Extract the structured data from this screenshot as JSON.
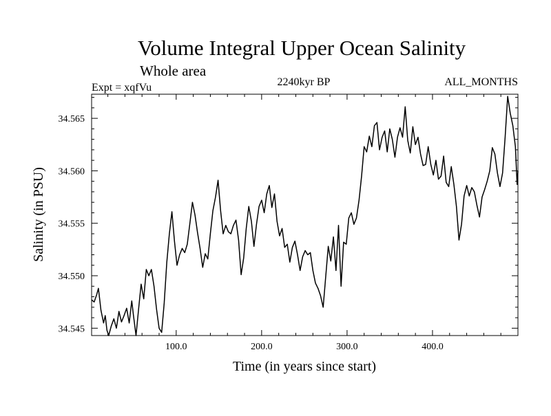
{
  "chart_data": {
    "type": "line",
    "title": "Volume Integral Upper Ocean Salinity",
    "subtitle": "Whole area",
    "experiment": "Expt = xqfVu",
    "period": "2240kyr BP",
    "months": "ALL_MONTHS",
    "xlabel": "Time (in years since start)",
    "ylabel": "Salinity (in PSU)",
    "xlim": [
      1,
      500
    ],
    "ylim": [
      34.5443,
      34.5673
    ],
    "x_ticks": [
      100,
      200,
      300,
      400
    ],
    "x_tick_labels": [
      "100.0",
      "200.0",
      "300.0",
      "400.0"
    ],
    "y_ticks": [
      34.545,
      34.55,
      34.555,
      34.56,
      34.565
    ],
    "y_tick_labels": [
      "34.545",
      "34.550",
      "34.555",
      "34.560",
      "34.565"
    ],
    "grid": false,
    "series": [
      {
        "name": "Salinity",
        "color": "#000000",
        "points": [
          [
            1,
            34.5477
          ],
          [
            4,
            34.5475
          ],
          [
            7,
            34.5482
          ],
          [
            9,
            34.5488
          ],
          [
            12,
            34.5467
          ],
          [
            15,
            34.5455
          ],
          [
            17,
            34.5462
          ],
          [
            19,
            34.5448
          ],
          [
            21,
            34.5443
          ],
          [
            24,
            34.5452
          ],
          [
            27,
            34.5459
          ],
          [
            30,
            34.545
          ],
          [
            33,
            34.5466
          ],
          [
            36,
            34.5456
          ],
          [
            39,
            34.5462
          ],
          [
            42,
            34.5469
          ],
          [
            45,
            34.5455
          ],
          [
            48,
            34.5476
          ],
          [
            50,
            34.5462
          ],
          [
            53,
            34.5443
          ],
          [
            56,
            34.5468
          ],
          [
            59,
            34.5492
          ],
          [
            62,
            34.5478
          ],
          [
            65,
            34.5506
          ],
          [
            68,
            34.55
          ],
          [
            71,
            34.5506
          ],
          [
            74,
            34.549
          ],
          [
            77,
            34.5468
          ],
          [
            80,
            34.545
          ],
          [
            83,
            34.5446
          ],
          [
            86,
            34.5474
          ],
          [
            89,
            34.5513
          ],
          [
            92,
            34.554
          ],
          [
            95,
            34.5561
          ],
          [
            98,
            34.5533
          ],
          [
            101,
            34.551
          ],
          [
            104,
            34.552
          ],
          [
            107,
            34.5526
          ],
          [
            110,
            34.5522
          ],
          [
            113,
            34.553
          ],
          [
            116,
            34.555
          ],
          [
            119,
            34.557
          ],
          [
            122,
            34.5558
          ],
          [
            125,
            34.5541
          ],
          [
            128,
            34.5526
          ],
          [
            131,
            34.5508
          ],
          [
            134,
            34.5521
          ],
          [
            137,
            34.5516
          ],
          [
            140,
            34.554
          ],
          [
            143,
            34.5562
          ],
          [
            146,
            34.5575
          ],
          [
            149,
            34.5591
          ],
          [
            152,
            34.5562
          ],
          [
            155,
            34.554
          ],
          [
            158,
            34.5548
          ],
          [
            161,
            34.5542
          ],
          [
            164,
            34.554
          ],
          [
            167,
            34.5548
          ],
          [
            170,
            34.5553
          ],
          [
            173,
            34.5534
          ],
          [
            176,
            34.5501
          ],
          [
            179,
            34.5517
          ],
          [
            182,
            34.5545
          ],
          [
            185,
            34.5566
          ],
          [
            188,
            34.5552
          ],
          [
            191,
            34.5528
          ],
          [
            194,
            34.5549
          ],
          [
            197,
            34.5566
          ],
          [
            200,
            34.5572
          ],
          [
            203,
            34.556
          ],
          [
            206,
            34.5578
          ],
          [
            209,
            34.5586
          ],
          [
            212,
            34.5565
          ],
          [
            215,
            34.5578
          ],
          [
            218,
            34.5552
          ],
          [
            221,
            34.5538
          ],
          [
            224,
            34.5545
          ],
          [
            227,
            34.5527
          ],
          [
            230,
            34.553
          ],
          [
            233,
            34.5513
          ],
          [
            236,
            34.5527
          ],
          [
            239,
            34.5533
          ],
          [
            242,
            34.552
          ],
          [
            245,
            34.5505
          ],
          [
            248,
            34.5518
          ],
          [
            251,
            34.5524
          ],
          [
            254,
            34.552
          ],
          [
            257,
            34.5522
          ],
          [
            260,
            34.5505
          ],
          [
            263,
            34.5493
          ],
          [
            266,
            34.5488
          ],
          [
            269,
            34.5481
          ],
          [
            272,
            34.547
          ],
          [
            275,
            34.5499
          ],
          [
            278,
            34.5528
          ],
          [
            281,
            34.5514
          ],
          [
            284,
            34.5537
          ],
          [
            287,
            34.5505
          ],
          [
            290,
            34.5548
          ],
          [
            293,
            34.549
          ],
          [
            296,
            34.5532
          ],
          [
            299,
            34.553
          ],
          [
            302,
            34.5555
          ],
          [
            305,
            34.556
          ],
          [
            308,
            34.5549
          ],
          [
            311,
            34.5555
          ],
          [
            314,
            34.5572
          ],
          [
            317,
            34.5595
          ],
          [
            320,
            34.5623
          ],
          [
            323,
            34.5618
          ],
          [
            326,
            34.5633
          ],
          [
            329,
            34.5623
          ],
          [
            332,
            34.5643
          ],
          [
            335,
            34.5646
          ],
          [
            338,
            34.562
          ],
          [
            341,
            34.5632
          ],
          [
            344,
            34.5638
          ],
          [
            347,
            34.5618
          ],
          [
            350,
            34.564
          ],
          [
            353,
            34.563
          ],
          [
            356,
            34.5613
          ],
          [
            359,
            34.5632
          ],
          [
            362,
            34.5641
          ],
          [
            365,
            34.5632
          ],
          [
            368,
            34.5661
          ],
          [
            371,
            34.5629
          ],
          [
            374,
            34.5617
          ],
          [
            377,
            34.5642
          ],
          [
            380,
            34.5625
          ],
          [
            383,
            34.5632
          ],
          [
            386,
            34.5616
          ],
          [
            389,
            34.5605
          ],
          [
            392,
            34.5606
          ],
          [
            395,
            34.5623
          ],
          [
            398,
            34.5606
          ],
          [
            401,
            34.5596
          ],
          [
            404,
            34.561
          ],
          [
            407,
            34.5592
          ],
          [
            410,
            34.5595
          ],
          [
            413,
            34.5614
          ],
          [
            416,
            34.5589
          ],
          [
            419,
            34.5585
          ],
          [
            422,
            34.5604
          ],
          [
            425,
            34.5587
          ],
          [
            428,
            34.5566
          ],
          [
            431,
            34.5534
          ],
          [
            434,
            34.5549
          ],
          [
            437,
            34.5576
          ],
          [
            440,
            34.5586
          ],
          [
            443,
            34.5576
          ],
          [
            446,
            34.5584
          ],
          [
            449,
            34.558
          ],
          [
            452,
            34.5567
          ],
          [
            455,
            34.5556
          ],
          [
            458,
            34.5575
          ],
          [
            461,
            34.5582
          ],
          [
            464,
            34.559
          ],
          [
            467,
            34.56
          ],
          [
            470,
            34.5622
          ],
          [
            473,
            34.5616
          ],
          [
            476,
            34.5598
          ],
          [
            479,
            34.5585
          ],
          [
            482,
            34.5598
          ],
          [
            485,
            34.5632
          ],
          [
            488,
            34.5671
          ],
          [
            491,
            34.5655
          ],
          [
            494,
            34.5643
          ],
          [
            497,
            34.5623
          ],
          [
            499,
            34.5587
          ],
          [
            500,
            34.56
          ]
        ]
      }
    ]
  }
}
